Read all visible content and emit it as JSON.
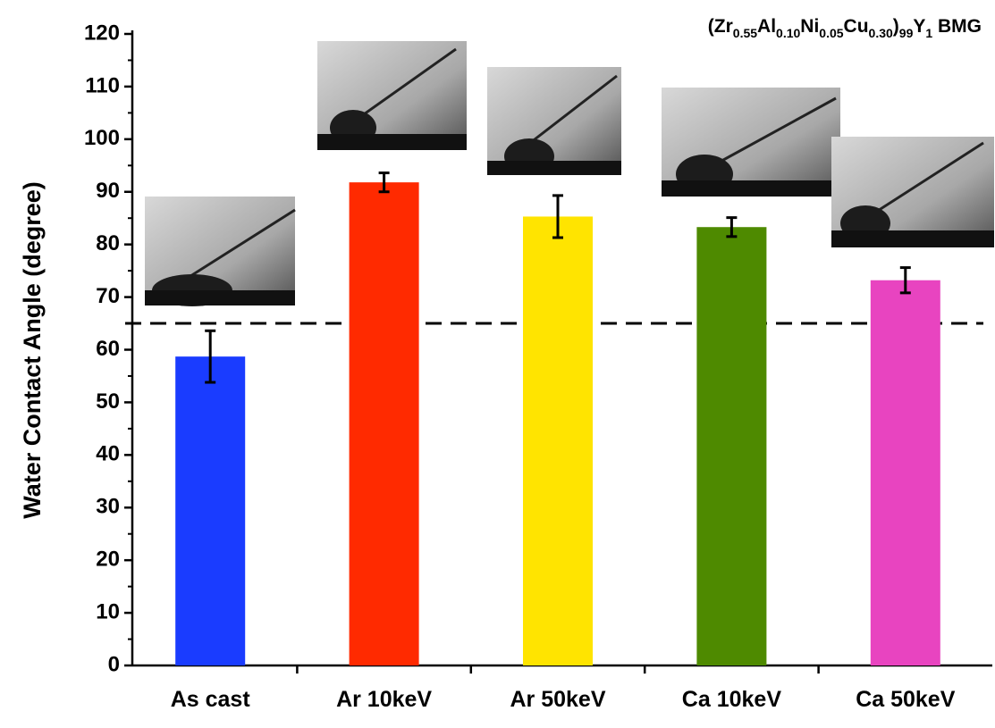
{
  "chart_data": {
    "type": "bar",
    "title": [
      "(Zr",
      "0.55",
      "Al",
      "0.10",
      "Ni",
      "0.05",
      "Cu",
      "0.30",
      ")",
      "99",
      "Y",
      "1",
      " BMG"
    ],
    "ylabel": "Water Contact Angle (degree)",
    "categories": [
      "As cast",
      "Ar 10keV",
      "Ar 50keV",
      "Ca 10keV",
      "Ca 50keV"
    ],
    "values": [
      58.7,
      91.8,
      85.3,
      83.3,
      73.2
    ],
    "errors": [
      4.9,
      1.8,
      4.0,
      1.8,
      2.4
    ],
    "colors": [
      "#1a3cff",
      "#ff2a00",
      "#ffe400",
      "#4e8a00",
      "#e844c0"
    ],
    "reference_line": 65,
    "ylim": [
      0,
      120
    ],
    "yticks": [
      0,
      10,
      20,
      30,
      40,
      50,
      60,
      70,
      80,
      90,
      100,
      110,
      120
    ]
  }
}
